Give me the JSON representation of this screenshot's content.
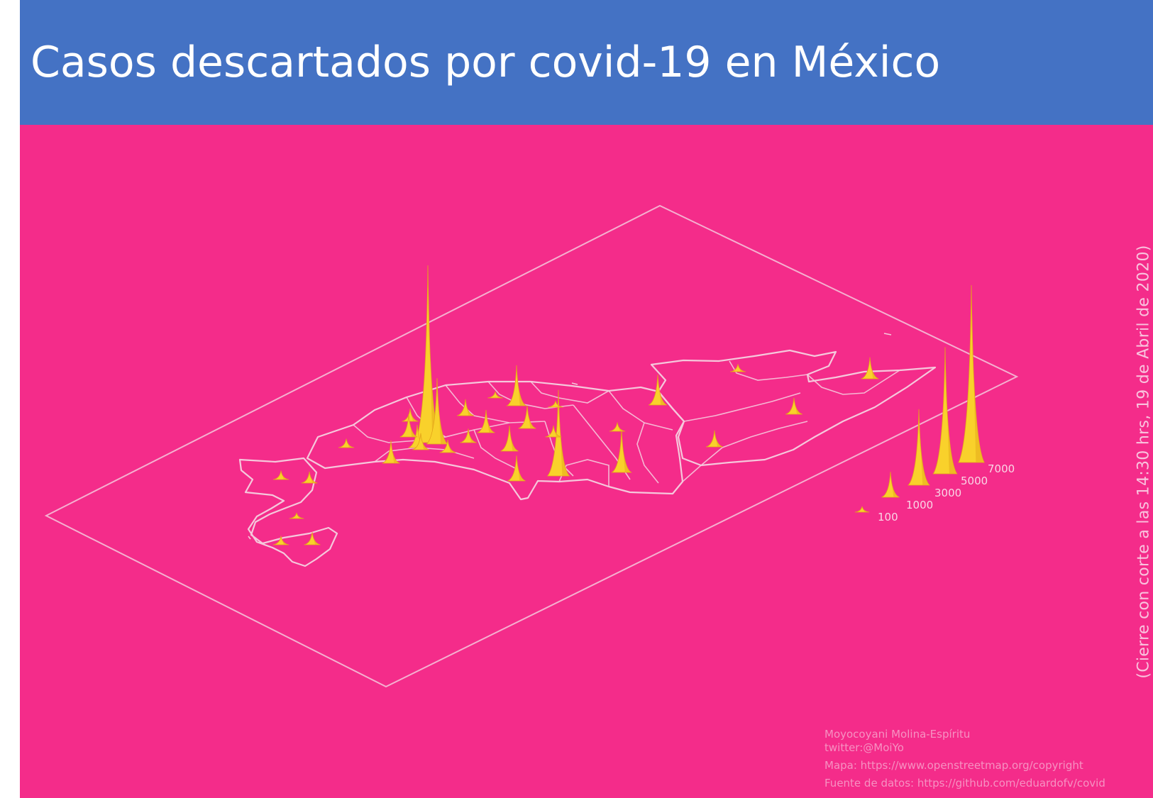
{
  "header": {
    "title": "Casos descartados por covid-19 en México"
  },
  "side_note": "(Cierre con corte a las 14:30 hrs, 19 de Abril de 2020)",
  "credits": {
    "author": "Moyocoyani Molina-Espíritu",
    "twitter": "twitter:@MoiYo",
    "map_source": "Mapa: https://www.openstreetmap.org/copyright",
    "data_source": "Fuente de datos: https://github.com/eduardofv/covid"
  },
  "colors": {
    "header_bg": "#4472c4",
    "panel_bg": "#f42c8a",
    "spike": "#f9d12b",
    "outline": "#f5c8dc"
  },
  "legend": {
    "items": [
      {
        "label": "100",
        "value": 100
      },
      {
        "label": "1000",
        "value": 1000
      },
      {
        "label": "3000",
        "value": 3000
      },
      {
        "label": "5000",
        "value": 5000
      },
      {
        "label": "7000",
        "value": 7000
      }
    ]
  },
  "spikes": [
    {
      "name": "baja-california-norte",
      "value": 350
    },
    {
      "name": "baja-california-norte-2",
      "value": 450
    },
    {
      "name": "baja-california-sur",
      "value": 150
    },
    {
      "name": "baja-california-sur-2",
      "value": 350
    },
    {
      "name": "baja-california-sur-3",
      "value": 500
    },
    {
      "name": "sonora",
      "value": 350
    },
    {
      "name": "jalisco",
      "value": 900
    },
    {
      "name": "nayarit",
      "value": 500
    },
    {
      "name": "ciudad-de-mexico",
      "value": 7000
    },
    {
      "name": "estado-de-mexico",
      "value": 2600
    },
    {
      "name": "puebla-cluster-1",
      "value": 900
    },
    {
      "name": "puebla-cluster-2",
      "value": 900
    },
    {
      "name": "morelos",
      "value": 650
    },
    {
      "name": "michoacan",
      "value": 500
    },
    {
      "name": "guerrero",
      "value": 550
    },
    {
      "name": "hidalgo",
      "value": 650
    },
    {
      "name": "queretaro",
      "value": 250
    },
    {
      "name": "guanajuato",
      "value": 1600
    },
    {
      "name": "san-luis-potosi",
      "value": 3400
    },
    {
      "name": "zacatecas",
      "value": 900
    },
    {
      "name": "aguascalientes",
      "value": 1000
    },
    {
      "name": "durango",
      "value": 250
    },
    {
      "name": "coahuila",
      "value": 450
    },
    {
      "name": "chihuahua",
      "value": 1700
    },
    {
      "name": "sinaloa",
      "value": 1000
    },
    {
      "name": "nuevo-leon",
      "value": 350
    },
    {
      "name": "tamaulipas",
      "value": 1200
    },
    {
      "name": "veracruz",
      "value": 900
    },
    {
      "name": "tabasco",
      "value": 650
    },
    {
      "name": "campeche",
      "value": 300
    },
    {
      "name": "yucatan",
      "value": 650
    },
    {
      "name": "quintana-roo",
      "value": 850
    }
  ]
}
